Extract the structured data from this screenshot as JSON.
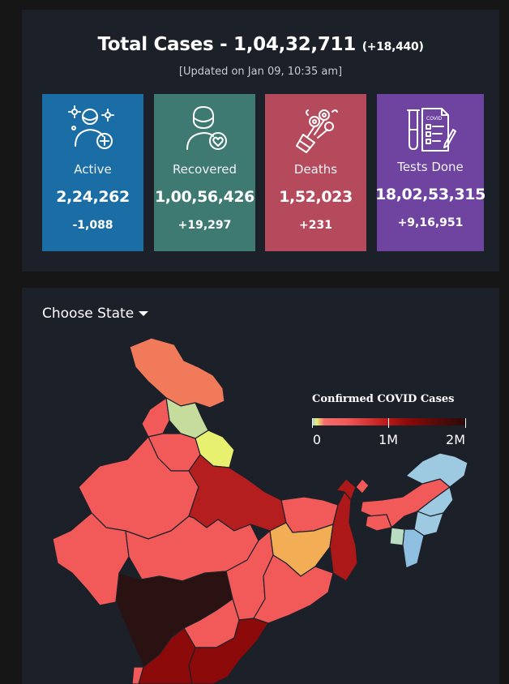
{
  "summary": {
    "title": "Total Cases - 1,04,32,711",
    "title_delta": "(+18,440)",
    "updated": "[Updated on Jan 09, 10:35 am]",
    "cards": {
      "active": {
        "label": "Active",
        "value": "2,24,262",
        "delta": "-1,088",
        "color": "#1b6da6",
        "icon": "patient-plus-icon"
      },
      "recovered": {
        "label": "Recovered",
        "value": "1,00,56,426",
        "delta": "+19,297",
        "color": "#3e7a72",
        "icon": "recovered-heart-icon"
      },
      "deaths": {
        "label": "Deaths",
        "value": "1,52,023",
        "delta": "+231",
        "color": "#b44a5c",
        "icon": "flowers-icon"
      },
      "tests": {
        "label": "Tests Done",
        "value": "18,02,53,315",
        "delta": "+9,16,951",
        "color": "#6e44a0",
        "icon": "test-report-icon"
      }
    }
  },
  "map": {
    "choose_state": "Choose State",
    "legend": {
      "title": "Confirmed COVID Cases",
      "ticks": [
        "0",
        "1M",
        "2M"
      ]
    },
    "caret_icon": "caret-down-icon"
  }
}
